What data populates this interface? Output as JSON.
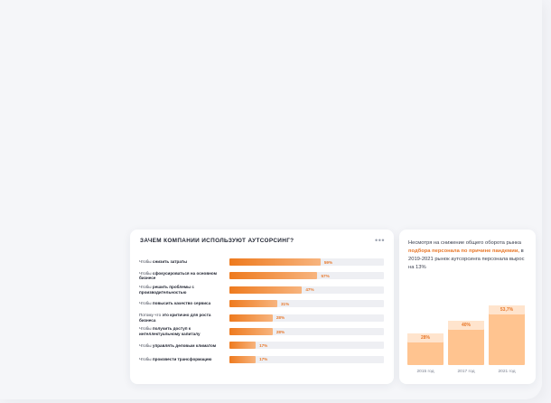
{
  "left_card": {
    "title": "ЗАЧЕМ КОМПАНИИ ИСПОЛЬЗУЮТ АУТСОРСИНГ?",
    "menu_icon": "more-dots-icon",
    "menu_glyph": "•••"
  },
  "right_card": {
    "text_before": "Несмотря на снижение общего оборота рынка ",
    "text_highlight": "подбора персонала по причине пандемии,",
    "text_after": " в 2019-2021 рынок аутсорсинга персонала вырос на 13%"
  },
  "colors": {
    "accent": "#ee7a1e",
    "accent_light": "#f7b47e",
    "bar_peach": "#ffc490",
    "bar_cap": "#ffe4cd",
    "track": "#eeeff3"
  },
  "chart_data": [
    {
      "type": "bar",
      "orientation": "horizontal",
      "title": "ЗАЧЕМ КОМПАНИИ ИСПОЛЬЗУЮТ АУТСОРСИНГ?",
      "categories": [
        {
          "pre": "Чтобы ",
          "bold": "снизить затраты",
          "post": ""
        },
        {
          "pre": "Чтобы ",
          "bold": "сфокусироваться на основном бизнесе",
          "post": ""
        },
        {
          "pre": "Чтобы ",
          "bold": "решить проблемы с производительностью",
          "post": ""
        },
        {
          "pre": "Чтобы ",
          "bold": "повысить качество сервиса",
          "post": ""
        },
        {
          "pre": "Потому что ",
          "bold": "это критично для роста бизнеса",
          "post": ""
        },
        {
          "pre": "Чтобы ",
          "bold": "получить доступ к интеллектуальному капиталу",
          "post": ""
        },
        {
          "pre": "Чтобы ",
          "bold": "управлять деловым климатом",
          "post": ""
        },
        {
          "pre": "Чтобы ",
          "bold": "произвести трансформацию",
          "post": ""
        }
      ],
      "values": [
        59,
        57,
        47,
        31,
        28,
        28,
        17,
        17
      ],
      "value_suffix": "%",
      "xlim": [
        0,
        100
      ]
    },
    {
      "type": "bar",
      "orientation": "vertical",
      "categories": [
        "2015 год",
        "2017 год",
        "2021 год"
      ],
      "values": [
        28,
        40,
        53.7
      ],
      "labels": [
        "28%",
        "40%",
        "53,7%"
      ],
      "ylim": [
        0,
        60
      ]
    }
  ]
}
